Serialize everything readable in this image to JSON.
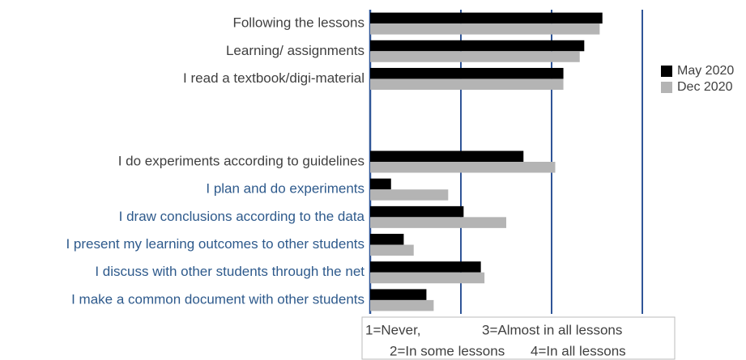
{
  "chart_data": {
    "type": "bar",
    "orientation": "horizontal",
    "categories": [
      "Following the lessons",
      "Learning/ assignments",
      "I read a textbook/digi-material",
      null,
      null,
      "I do experiments according to guidelines",
      "I plan and do experiments",
      "I draw conclusions according to the data",
      "I present my learning outcomes to other students",
      "I discuss with other students through the net",
      "I make a common document with other students"
    ],
    "category_colors": [
      "#404040",
      "#404040",
      "#404040",
      null,
      null,
      "#404040",
      "#2e5a8c",
      "#2e5a8c",
      "#2e5a8c",
      "#2e5a8c",
      "#2e5a8c"
    ],
    "series": [
      {
        "name": "May 2020",
        "color": "#000000",
        "values": [
          3.56,
          3.36,
          3.13,
          null,
          null,
          2.69,
          1.23,
          2.03,
          1.37,
          2.22,
          1.62
        ]
      },
      {
        "name": "Dec 2020",
        "color": "#b4b4b4",
        "values": [
          3.53,
          3.31,
          3.13,
          null,
          null,
          3.04,
          1.86,
          2.5,
          1.48,
          2.26,
          1.7
        ]
      }
    ],
    "xlim": [
      1,
      4.1
    ],
    "xticks": [
      1,
      2,
      3,
      4
    ],
    "grid": true,
    "grid_color": "#2f5597",
    "legend": "right",
    "notes": [
      "1=Never,",
      "3=Almost in all lessons",
      "2=In some lessons",
      "4=In all lessons"
    ]
  }
}
